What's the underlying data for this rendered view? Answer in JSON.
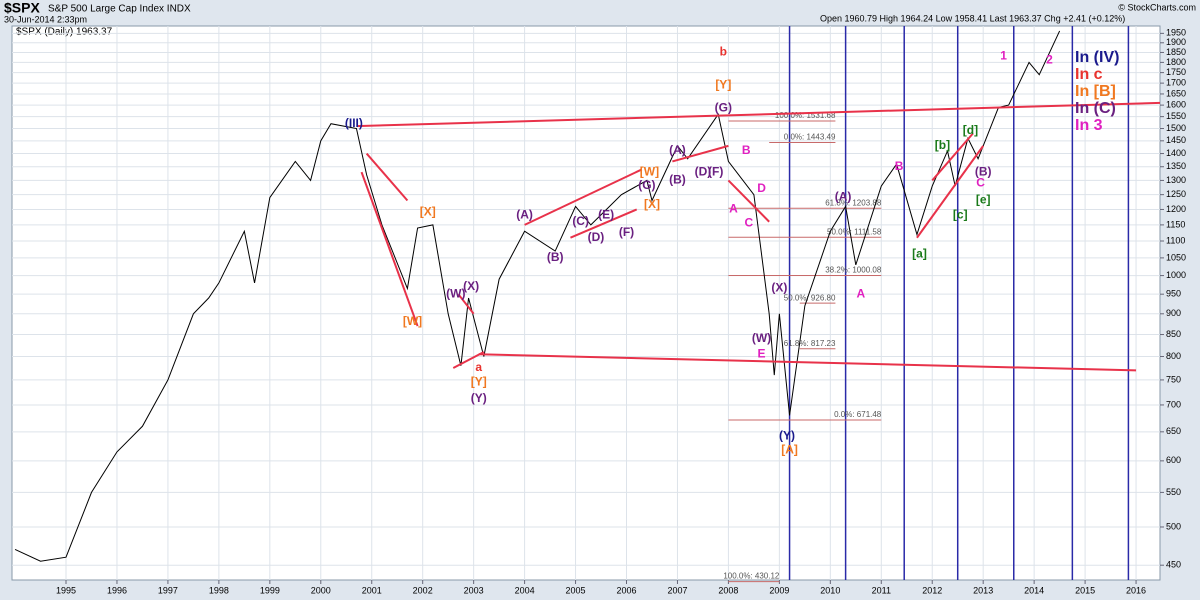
{
  "chart_data": {
    "type": "line",
    "title": "$SPX",
    "subtitle": "S&P 500 Large Cap Index INDX",
    "date": "30-Jun-2014 2:33pm",
    "quote": "Open 1960.79 High 1964.24 Low 1958.41 Last 1963.37 Chg +2.41 (+0.12%)",
    "credit": "© StockCharts.com",
    "log_scale": true,
    "grid": true,
    "xlim": [
      1993.94,
      2016.47
    ],
    "xticks": [
      1995,
      1996,
      1997,
      1998,
      1999,
      2000,
      2001,
      2002,
      2003,
      2004,
      2005,
      2006,
      2007,
      2008,
      2009,
      2010,
      2011,
      2012,
      2013,
      2014,
      2015,
      2016
    ],
    "ylim": [
      432,
      1990
    ],
    "yticks": [
      450,
      500,
      550,
      600,
      650,
      700,
      750,
      800,
      850,
      900,
      950,
      1000,
      1050,
      1100,
      1150,
      1200,
      1250,
      1300,
      1350,
      1400,
      1450,
      1500,
      1550,
      1600,
      1650,
      1700,
      1750,
      1800,
      1850,
      1900,
      1950
    ],
    "x": [
      1994.0,
      1994.5,
      1995.0,
      1995.5,
      1996.0,
      1996.5,
      1997.0,
      1997.5,
      1997.8,
      1998.0,
      1998.5,
      1998.7,
      1999.0,
      1999.5,
      1999.8,
      2000.0,
      2000.2,
      2000.7,
      2000.9,
      2001.2,
      2001.7,
      2001.9,
      2002.2,
      2002.5,
      2002.75,
      2002.9,
      2003.2,
      2003.5,
      2004.0,
      2004.6,
      2005.0,
      2005.3,
      2005.9,
      2006.4,
      2006.5,
      2007.0,
      2007.2,
      2007.8,
      2008.0,
      2008.5,
      2008.8,
      2008.9,
      2009.0,
      2009.2,
      2009.5,
      2010.0,
      2010.3,
      2010.5,
      2011.0,
      2011.3,
      2011.7,
      2012.0,
      2012.3,
      2012.45,
      2012.7,
      2012.9,
      2013.3,
      2013.5,
      2013.9,
      2014.1,
      2014.5
    ],
    "series": [
      {
        "name": "$SPX (Daily) 1963.37",
        "color": "#000000",
        "values": [
          470,
          455,
          460,
          550,
          615,
          660,
          750,
          900,
          940,
          980,
          1130,
          980,
          1240,
          1370,
          1300,
          1450,
          1520,
          1500,
          1320,
          1150,
          965,
          1140,
          1150,
          900,
          780,
          940,
          800,
          990,
          1130,
          1070,
          1210,
          1150,
          1250,
          1300,
          1230,
          1430,
          1380,
          1560,
          1370,
          1250,
          900,
          760,
          900,
          680,
          920,
          1130,
          1210,
          1030,
          1280,
          1360,
          1120,
          1280,
          1410,
          1280,
          1460,
          1380,
          1590,
          1600,
          1800,
          1740,
          1963
        ]
      }
    ],
    "wave_counts": [
      {
        "label": "In (IV)",
        "color": "#1a1a8c"
      },
      {
        "label": "In c",
        "color": "#e8322e"
      },
      {
        "label": "In [B]",
        "color": "#f07820"
      },
      {
        "label": "In (C)",
        "color": "#6a2080"
      },
      {
        "label": "In 3",
        "color": "#e020c0"
      }
    ],
    "fib_levels": [
      {
        "label": "100.0%: 1531.68",
        "value": 1531.68,
        "x": [
          2008.0,
          2010.1
        ]
      },
      {
        "label": "0.0%: 1443.49",
        "value": 1443.49,
        "x": [
          2008.8,
          2010.1
        ]
      },
      {
        "label": "61.8%: 1203.88",
        "value": 1203.88,
        "x": [
          2008.0,
          2011.0
        ]
      },
      {
        "label": "50.0%: 1111.58",
        "value": 1111.58,
        "x": [
          2008.0,
          2011.0
        ]
      },
      {
        "label": "38.2%: 1000.08",
        "value": 1000.08,
        "x": [
          2008.0,
          2011.0
        ]
      },
      {
        "label": "50.0%: 926.80",
        "value": 926.8,
        "x": [
          2009.4,
          2010.1
        ]
      },
      {
        "label": "61.8%: 817.23",
        "value": 817.23,
        "x": [
          2009.4,
          2010.1
        ]
      },
      {
        "label": "0.0%: 671.48",
        "value": 671.48,
        "x": [
          2008.0,
          2011.0
        ]
      },
      {
        "label": "100.0%: 430.12",
        "value": 430.12,
        "x": [
          2008.0,
          2009.0
        ]
      }
    ],
    "cycle_lines": [
      2009.2,
      2010.3,
      2011.45,
      2012.5,
      2013.6,
      2014.75,
      2015.85
    ],
    "trend_lines": [
      [
        2000.7,
        1510,
        2016.47,
        1610
      ],
      [
        2003.1,
        805,
        2016.0,
        770
      ],
      [
        2000.8,
        1330,
        2001.9,
        870
      ],
      [
        2000.9,
        1400,
        2001.7,
        1230
      ],
      [
        2002.6,
        775,
        2003.2,
        810
      ],
      [
        2002.7,
        950,
        2003.0,
        900
      ],
      [
        2004.0,
        1150,
        2006.3,
        1340
      ],
      [
        2004.9,
        1110,
        2006.2,
        1200
      ],
      [
        2006.9,
        1370,
        2008.0,
        1430
      ],
      [
        2008.0,
        1300,
        2008.8,
        1160
      ],
      [
        2011.7,
        1110,
        2013.0,
        1430
      ],
      [
        2012.0,
        1300,
        2012.8,
        1480
      ]
    ],
    "annotations": [
      {
        "label": "(III)",
        "x": 2000.65,
        "y": 1520,
        "color": "#1a1a8c"
      },
      {
        "label": "[W]",
        "x": 2001.8,
        "y": 880,
        "color": "#f07820"
      },
      {
        "label": "[X]",
        "x": 2002.1,
        "y": 1190,
        "color": "#f07820"
      },
      {
        "label": "(W)",
        "x": 2002.65,
        "y": 950,
        "color": "#6a2080"
      },
      {
        "label": "(X)",
        "x": 2002.95,
        "y": 970,
        "color": "#6a2080"
      },
      {
        "label": "a",
        "x": 2003.1,
        "y": 775,
        "color": "#e8322e"
      },
      {
        "label": "[Y]",
        "x": 2003.1,
        "y": 745,
        "color": "#f07820"
      },
      {
        "label": "(Y)",
        "x": 2003.1,
        "y": 712,
        "color": "#6a2080"
      },
      {
        "label": "(A)",
        "x": 2004.0,
        "y": 1180,
        "color": "#6a2080"
      },
      {
        "label": "(B)",
        "x": 2004.6,
        "y": 1050,
        "color": "#6a2080"
      },
      {
        "label": "(C)",
        "x": 2005.1,
        "y": 1160,
        "color": "#6a2080"
      },
      {
        "label": "(D)",
        "x": 2005.4,
        "y": 1110,
        "color": "#6a2080"
      },
      {
        "label": "(E)",
        "x": 2005.6,
        "y": 1180,
        "color": "#6a2080"
      },
      {
        "label": "(F)",
        "x": 2006.0,
        "y": 1125,
        "color": "#6a2080"
      },
      {
        "label": "(G)",
        "x": 2006.4,
        "y": 1280,
        "color": "#6a2080"
      },
      {
        "label": "[W]",
        "x": 2006.45,
        "y": 1330,
        "color": "#f07820"
      },
      {
        "label": "[X]",
        "x": 2006.5,
        "y": 1215,
        "color": "#f07820"
      },
      {
        "label": "(A)",
        "x": 2007.0,
        "y": 1410,
        "color": "#6a2080"
      },
      {
        "label": "(B)",
        "x": 2007.0,
        "y": 1300,
        "color": "#6a2080"
      },
      {
        "label": "(D)",
        "x": 2007.5,
        "y": 1330,
        "color": "#6a2080"
      },
      {
        "label": "(F)",
        "x": 2007.75,
        "y": 1330,
        "color": "#6a2080"
      },
      {
        "label": "b",
        "x": 2007.9,
        "y": 1850,
        "color": "#e8322e"
      },
      {
        "label": "[Y]",
        "x": 2007.9,
        "y": 1690,
        "color": "#f07820"
      },
      {
        "label": "(G)",
        "x": 2007.9,
        "y": 1585,
        "color": "#6a2080"
      },
      {
        "label": "A",
        "x": 2008.1,
        "y": 1200,
        "color": "#e020c0"
      },
      {
        "label": "B",
        "x": 2008.35,
        "y": 1410,
        "color": "#e020c0"
      },
      {
        "label": "C",
        "x": 2008.4,
        "y": 1155,
        "color": "#e020c0"
      },
      {
        "label": "D",
        "x": 2008.65,
        "y": 1270,
        "color": "#e020c0"
      },
      {
        "label": "(X)",
        "x": 2009.0,
        "y": 965,
        "color": "#6a2080"
      },
      {
        "label": "(W)",
        "x": 2008.65,
        "y": 840,
        "color": "#6a2080"
      },
      {
        "label": "E",
        "x": 2008.65,
        "y": 805,
        "color": "#e020c0"
      },
      {
        "label": "(Y)",
        "x": 2009.15,
        "y": 642,
        "color": "#1a1a8c"
      },
      {
        "label": "[A]",
        "x": 2009.2,
        "y": 618,
        "color": "#f07820"
      },
      {
        "label": "(A)",
        "x": 2010.25,
        "y": 1240,
        "color": "#6a2080"
      },
      {
        "label": "A",
        "x": 2010.6,
        "y": 950,
        "color": "#e020c0"
      },
      {
        "label": "B",
        "x": 2011.35,
        "y": 1350,
        "color": "#e020c0"
      },
      {
        "label": "[a]",
        "x": 2011.75,
        "y": 1060,
        "color": "#1a7a1a"
      },
      {
        "label": "[b]",
        "x": 2012.2,
        "y": 1430,
        "color": "#1a7a1a"
      },
      {
        "label": "[c]",
        "x": 2012.55,
        "y": 1180,
        "color": "#1a7a1a"
      },
      {
        "label": "[d]",
        "x": 2012.75,
        "y": 1490,
        "color": "#1a7a1a"
      },
      {
        "label": "[e]",
        "x": 2013.0,
        "y": 1230,
        "color": "#1a7a1a"
      },
      {
        "label": "(B)",
        "x": 2013.0,
        "y": 1330,
        "color": "#6a2080"
      },
      {
        "label": "C",
        "x": 2012.95,
        "y": 1290,
        "color": "#e020c0"
      },
      {
        "label": "1",
        "x": 2013.4,
        "y": 1830,
        "color": "#e020c0"
      },
      {
        "label": "2",
        "x": 2014.3,
        "y": 1810,
        "color": "#e020c0"
      }
    ]
  }
}
